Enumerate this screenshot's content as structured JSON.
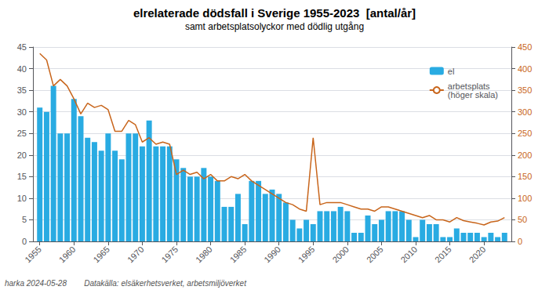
{
  "chart_data": {
    "type": "bar",
    "title": "elrelaterade dödsfall i Sverige 1955-2023  [antal/år]",
    "subtitle": "samt arbetsplatsolyckor med dödlig utgång",
    "annotations": [
      "harka 2024-05-28        Datakälla: elsäkerhetsverket, arbetsmiljöverket"
    ],
    "x": [
      1955,
      1956,
      1957,
      1958,
      1959,
      1960,
      1961,
      1962,
      1963,
      1964,
      1965,
      1966,
      1967,
      1968,
      1969,
      1970,
      1971,
      1972,
      1973,
      1974,
      1975,
      1976,
      1977,
      1978,
      1979,
      1980,
      1981,
      1982,
      1983,
      1984,
      1985,
      1986,
      1987,
      1988,
      1989,
      1990,
      1991,
      1992,
      1993,
      1994,
      1995,
      1996,
      1997,
      1998,
      1999,
      2000,
      2001,
      2002,
      2003,
      2004,
      2005,
      2006,
      2007,
      2008,
      2009,
      2010,
      2011,
      2012,
      2013,
      2014,
      2015,
      2016,
      2017,
      2018,
      2019,
      2020,
      2021,
      2022,
      2023
    ],
    "xlim": [
      1954,
      2024
    ],
    "xticks": [
      1955,
      1960,
      1965,
      1970,
      1975,
      1980,
      1985,
      1990,
      1995,
      2000,
      2005,
      2010,
      2015,
      2020
    ],
    "ylim": [
      0,
      45
    ],
    "yticks": [
      0,
      5,
      10,
      15,
      20,
      25,
      30,
      35,
      40,
      45
    ],
    "y2lim": [
      0,
      450
    ],
    "y2ticks": [
      0,
      50,
      100,
      150,
      200,
      250,
      300,
      350,
      400,
      450
    ],
    "grid": true,
    "legend": "upper right",
    "series": [
      {
        "name": "el",
        "type": "bar",
        "color": "#29ABE2",
        "values": [
          31,
          30,
          36,
          25,
          25,
          33,
          29,
          24,
          23,
          21,
          25,
          21,
          19,
          25,
          25,
          22,
          28,
          22,
          22,
          22,
          19,
          17,
          15,
          15,
          17,
          15,
          14,
          8,
          8,
          11,
          4,
          14,
          14,
          11,
          12,
          11,
          9,
          5,
          3,
          5,
          4,
          7,
          7,
          7,
          8,
          7,
          2,
          2,
          6,
          4,
          5,
          7,
          7,
          7,
          5,
          1,
          5,
          4,
          4,
          1,
          1,
          3,
          2,
          2,
          2,
          1,
          2,
          1,
          2
        ]
      },
      {
        "name": "arbetsplats\n(höger skala)",
        "type": "line",
        "color": "#C8651B",
        "axis": "y2",
        "values": [
          435,
          420,
          360,
          375,
          360,
          330,
          295,
          320,
          310,
          315,
          305,
          255,
          255,
          280,
          270,
          230,
          240,
          225,
          230,
          225,
          155,
          165,
          155,
          160,
          145,
          155,
          140,
          140,
          150,
          145,
          155,
          140,
          130,
          120,
          110,
          100,
          90,
          85,
          75,
          70,
          240,
          85,
          90,
          90,
          90,
          85,
          80,
          75,
          75,
          70,
          80,
          80,
          75,
          70,
          65,
          60,
          55,
          60,
          50,
          50,
          45,
          55,
          48,
          45,
          42,
          38,
          45,
          47,
          55
        ]
      }
    ]
  }
}
